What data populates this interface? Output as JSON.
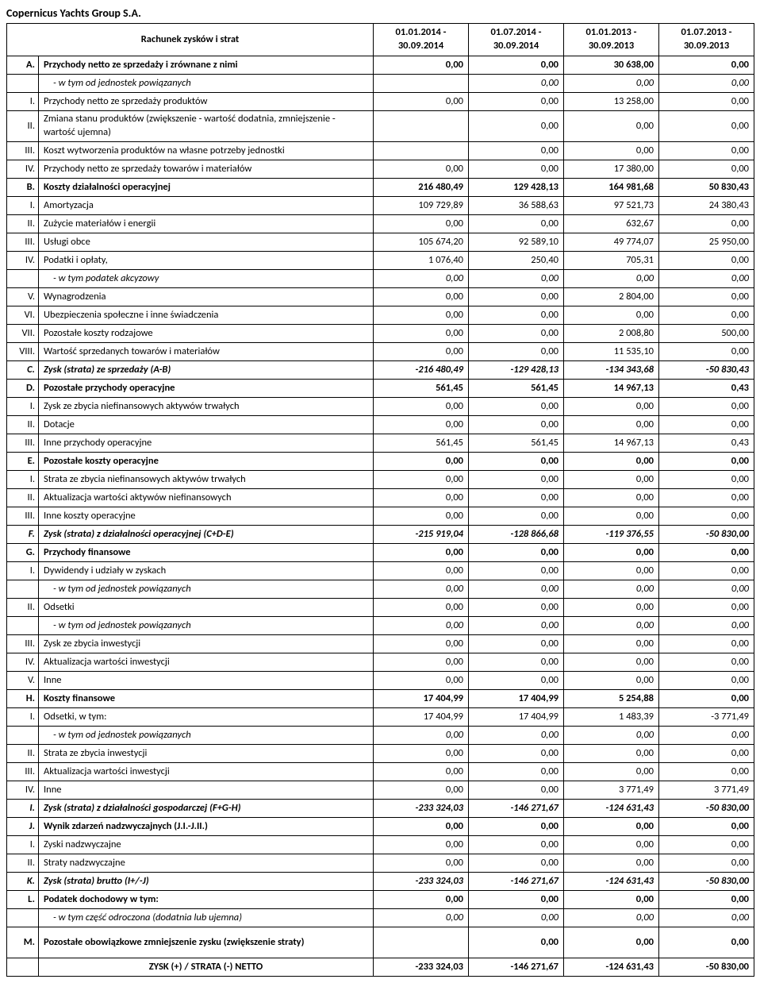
{
  "company": "Copernicus Yachts Group S.A.",
  "header": {
    "desc": "Rachunek zysków i strat",
    "periods": [
      "01.01.2014 - 30.09.2014",
      "01.07.2014 - 30.09.2014",
      "01.01.2013 - 30.09.2013",
      "01.07.2013 - 30.09.2013"
    ]
  },
  "rows": [
    {
      "id": "A.",
      "desc": "Przychody netto ze sprzedaży i zrównane z nimi",
      "v": [
        "0,00",
        "0,00",
        "30 638,00",
        "0,00"
      ],
      "cls": "bold"
    },
    {
      "id": "",
      "desc": "- w tym od jednostek powiązanych",
      "v": [
        "",
        "0,00",
        "0,00",
        "0,00"
      ],
      "cls": "italic",
      "indent": true
    },
    {
      "id": "I.",
      "desc": "Przychody netto ze sprzedaży produktów",
      "v": [
        "0,00",
        "0,00",
        "13 258,00",
        "0,00"
      ]
    },
    {
      "id": "II.",
      "desc": "Zmiana stanu produktów (zwiększenie - wartość dodatnia, zmniejszenie - wartość ujemna)",
      "v": [
        "",
        "0,00",
        "0,00",
        "0,00"
      ],
      "tall": true
    },
    {
      "id": "III.",
      "desc": "Koszt wytworzenia produktów na własne potrzeby jednostki",
      "v": [
        "",
        "0,00",
        "0,00",
        "0,00"
      ]
    },
    {
      "id": "IV.",
      "desc": "Przychody netto ze sprzedaży towarów i materiałów",
      "v": [
        "0,00",
        "0,00",
        "17 380,00",
        "0,00"
      ]
    },
    {
      "id": "B.",
      "desc": "Koszty działalności operacyjnej",
      "v": [
        "216 480,49",
        "129 428,13",
        "164 981,68",
        "50 830,43"
      ],
      "cls": "bold"
    },
    {
      "id": "I.",
      "desc": "Amortyzacja",
      "v": [
        "109 729,89",
        "36 588,63",
        "97 521,73",
        "24 380,43"
      ]
    },
    {
      "id": "II.",
      "desc": "Zużycie materiałów i energii",
      "v": [
        "0,00",
        "0,00",
        "632,67",
        "0,00"
      ]
    },
    {
      "id": "III.",
      "desc": "Usługi obce",
      "v": [
        "105 674,20",
        "92 589,10",
        "49 774,07",
        "25 950,00"
      ]
    },
    {
      "id": "IV.",
      "desc": "Podatki i opłaty,",
      "v": [
        "1 076,40",
        "250,40",
        "705,31",
        "0,00"
      ]
    },
    {
      "id": "",
      "desc": "-  w tym podatek akcyzowy",
      "v": [
        "0,00",
        "0,00",
        "0,00",
        "0,00"
      ],
      "cls": "italic",
      "indent": true
    },
    {
      "id": "V.",
      "desc": "Wynagrodzenia",
      "v": [
        "0,00",
        "0,00",
        "2 804,00",
        "0,00"
      ]
    },
    {
      "id": "VI.",
      "desc": "Ubezpieczenia społeczne i inne świadczenia",
      "v": [
        "0,00",
        "0,00",
        "0,00",
        "0,00"
      ]
    },
    {
      "id": "VII.",
      "desc": "Pozostałe koszty rodzajowe",
      "v": [
        "0,00",
        "0,00",
        "2 008,80",
        "500,00"
      ]
    },
    {
      "id": "VIII.",
      "desc": "Wartość sprzedanych towarów i materiałów",
      "v": [
        "0,00",
        "0,00",
        "11 535,10",
        "0,00"
      ]
    },
    {
      "id": "C.",
      "desc": "Zysk (strata) ze sprzedaży (A-B)",
      "v": [
        "-216 480,49",
        "-129 428,13",
        "-134 343,68",
        "-50 830,43"
      ],
      "cls": "bolditalic"
    },
    {
      "id": "D.",
      "desc": "Pozostałe przychody operacyjne",
      "v": [
        "561,45",
        "561,45",
        "14 967,13",
        "0,43"
      ],
      "cls": "bold"
    },
    {
      "id": "I.",
      "desc": "Zysk ze zbycia niefinansowych aktywów trwałych",
      "v": [
        "0,00",
        "0,00",
        "0,00",
        "0,00"
      ]
    },
    {
      "id": "II.",
      "desc": "Dotacje",
      "v": [
        "0,00",
        "0,00",
        "0,00",
        "0,00"
      ]
    },
    {
      "id": "III.",
      "desc": "Inne przychody operacyjne",
      "v": [
        "561,45",
        "561,45",
        "14 967,13",
        "0,43"
      ]
    },
    {
      "id": "E.",
      "desc": "Pozostałe koszty operacyjne",
      "v": [
        "0,00",
        "0,00",
        "0,00",
        "0,00"
      ],
      "cls": "bold"
    },
    {
      "id": "I.",
      "desc": "Strata ze zbycia niefinansowych aktywów trwałych",
      "v": [
        "0,00",
        "0,00",
        "0,00",
        "0,00"
      ]
    },
    {
      "id": "II.",
      "desc": "Aktualizacja wartości aktywów niefinansowych",
      "v": [
        "0,00",
        "0,00",
        "0,00",
        "0,00"
      ]
    },
    {
      "id": "III.",
      "desc": "Inne koszty operacyjne",
      "v": [
        "0,00",
        "0,00",
        "0,00",
        "0,00"
      ]
    },
    {
      "id": "F.",
      "desc": "Zysk (strata) z działalności operacyjnej (C+D-E)",
      "v": [
        "-215 919,04",
        "-128 866,68",
        "-119 376,55",
        "-50 830,00"
      ],
      "cls": "bolditalic"
    },
    {
      "id": "G.",
      "desc": "Przychody finansowe",
      "v": [
        "0,00",
        "0,00",
        "0,00",
        "0,00"
      ],
      "cls": "bold"
    },
    {
      "id": "I.",
      "desc": "Dywidendy i udziały w zyskach",
      "v": [
        "0,00",
        "0,00",
        "0,00",
        "0,00"
      ]
    },
    {
      "id": "",
      "desc": "- w tym od jednostek powiązanych",
      "v": [
        "0,00",
        "0,00",
        "0,00",
        "0,00"
      ],
      "cls": "italic",
      "indent": true
    },
    {
      "id": "II.",
      "desc": "Odsetki",
      "v": [
        "0,00",
        "0,00",
        "0,00",
        "0,00"
      ]
    },
    {
      "id": "",
      "desc": "- w tym od jednostek powiązanych",
      "v": [
        "0,00",
        "0,00",
        "0,00",
        "0,00"
      ],
      "cls": "italic",
      "indent": true
    },
    {
      "id": "III.",
      "desc": "Zysk ze zbycia inwestycji",
      "v": [
        "0,00",
        "0,00",
        "0,00",
        "0,00"
      ]
    },
    {
      "id": "IV.",
      "desc": "Aktualizacja wartości inwestycji",
      "v": [
        "0,00",
        "0,00",
        "0,00",
        "0,00"
      ]
    },
    {
      "id": "V.",
      "desc": "Inne",
      "v": [
        "0,00",
        "0,00",
        "0,00",
        "0,00"
      ]
    },
    {
      "id": "H.",
      "desc": "Koszty finansowe",
      "v": [
        "17 404,99",
        "17 404,99",
        "5 254,88",
        "0,00"
      ],
      "cls": "bold"
    },
    {
      "id": "I.",
      "desc": "Odsetki, w tym:",
      "v": [
        "17 404,99",
        "17 404,99",
        "1 483,39",
        "-3 771,49"
      ]
    },
    {
      "id": "",
      "desc": "- w tym od jednostek powiązanych",
      "v": [
        "0,00",
        "0,00",
        "0,00",
        "0,00"
      ],
      "cls": "italic",
      "indent": true
    },
    {
      "id": "II.",
      "desc": "Strata ze zbycia inwestycji",
      "v": [
        "0,00",
        "0,00",
        "0,00",
        "0,00"
      ]
    },
    {
      "id": "III.",
      "desc": "Aktualizacja wartości inwestycji",
      "v": [
        "0,00",
        "0,00",
        "0,00",
        "0,00"
      ]
    },
    {
      "id": "IV.",
      "desc": "Inne",
      "v": [
        "0,00",
        "0,00",
        "3 771,49",
        "3 771,49"
      ]
    },
    {
      "id": "I.",
      "desc": "Zysk (strata) z działalności gospodarczej (F+G-H)",
      "v": [
        "-233 324,03",
        "-146 271,67",
        "-124 631,43",
        "-50 830,00"
      ],
      "cls": "bolditalic"
    },
    {
      "id": "J.",
      "desc": "Wynik zdarzeń nadzwyczajnych (J.I.-J.II.)",
      "v": [
        "0,00",
        "0,00",
        "0,00",
        "0,00"
      ],
      "cls": "bold"
    },
    {
      "id": "I.",
      "desc": "Zyski nadzwyczajne",
      "v": [
        "0,00",
        "0,00",
        "0,00",
        "0,00"
      ]
    },
    {
      "id": "II.",
      "desc": "Straty nadzwyczajne",
      "v": [
        "0,00",
        "0,00",
        "0,00",
        "0,00"
      ]
    },
    {
      "id": "K.",
      "desc": "Zysk (strata) brutto (I+/-J)",
      "v": [
        "-233 324,03",
        "-146 271,67",
        "-124 631,43",
        "-50 830,00"
      ],
      "cls": "bolditalic"
    },
    {
      "id": "L.",
      "desc": "Podatek dochodowy w tym:",
      "v": [
        "0,00",
        "0,00",
        "0,00",
        "0,00"
      ],
      "cls": "bold"
    },
    {
      "id": "",
      "desc": "- w tym część odroczona (dodatnia  lub ujemna)",
      "v": [
        "0,00",
        "0,00",
        "0,00",
        "0,00"
      ],
      "cls": "italic",
      "indent": true
    },
    {
      "id": "M.",
      "desc": "Pozostałe obowiązkowe zmniejszenie zysku (zwiększenie straty)",
      "v": [
        "",
        "0,00",
        "0,00",
        "0,00"
      ],
      "cls": "bold",
      "tall": true
    },
    {
      "id": "",
      "desc": "ZYSK (+) / STRATA (-) NETTO",
      "v": [
        "-233 324,03",
        "-146 271,67",
        "-124 631,43",
        "-50 830,00"
      ],
      "final": true
    }
  ]
}
